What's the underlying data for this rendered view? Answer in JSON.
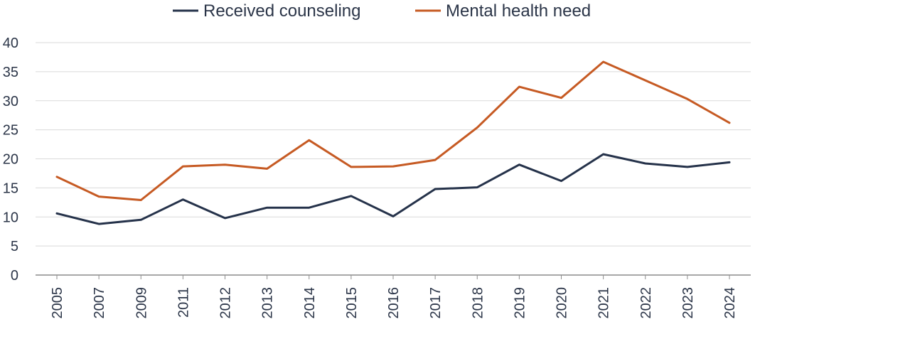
{
  "chart_data": {
    "type": "line",
    "title": "",
    "xlabel": "",
    "ylabel": "",
    "x": [
      "2005",
      "2007",
      "2009",
      "2011",
      "2012",
      "2013",
      "2014",
      "2015",
      "2016",
      "2017",
      "2018",
      "2019",
      "2020",
      "2021",
      "2022",
      "2023",
      "2024"
    ],
    "ylim": [
      0,
      40
    ],
    "yticks": [
      "0",
      "5",
      "10",
      "15",
      "20",
      "25",
      "30",
      "35",
      "40"
    ],
    "grid": "horizontal",
    "legend_position": "top",
    "series": [
      {
        "name": "Received counseling",
        "color": "#25324a",
        "values": [
          10.6,
          8.8,
          9.5,
          13.0,
          9.8,
          11.6,
          11.6,
          13.6,
          10.1,
          14.8,
          15.1,
          19.0,
          16.2,
          20.8,
          19.2,
          18.6,
          19.4
        ]
      },
      {
        "name": "Mental health need",
        "color": "#c65a23",
        "values": [
          16.9,
          13.5,
          12.9,
          18.7,
          19.0,
          18.3,
          23.2,
          18.6,
          18.7,
          19.8,
          25.4,
          32.4,
          30.5,
          36.7,
          33.5,
          30.3,
          26.2
        ]
      }
    ]
  }
}
